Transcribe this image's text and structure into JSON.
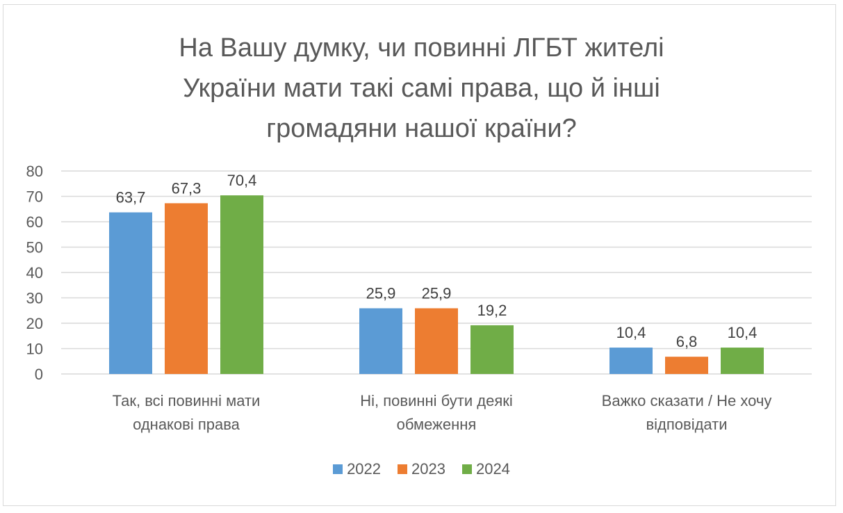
{
  "chart_data": {
    "type": "bar",
    "title_lines": [
      "На Вашу думку, чи повинні ЛГБТ жителі",
      "України мати такі самі права, що й інші",
      "громадяни нашої країни?"
    ],
    "categories": [
      [
        "Так, всі повинні мати",
        "однакові права"
      ],
      [
        "Ні, повинні бути деякі",
        "обмеження"
      ],
      [
        "Важко сказати / Не хочу",
        "відповідати"
      ]
    ],
    "series": [
      {
        "name": "2022",
        "color": "#5B9BD5",
        "values": [
          63.7,
          25.9,
          10.4
        ],
        "labels": [
          "63,7",
          "25,9",
          "10,4"
        ]
      },
      {
        "name": "2023",
        "color": "#ED7D31",
        "values": [
          67.3,
          25.9,
          6.8
        ],
        "labels": [
          "67,3",
          "25,9",
          "6,8"
        ]
      },
      {
        "name": "2024",
        "color": "#70AD47",
        "values": [
          70.4,
          19.2,
          10.4
        ],
        "labels": [
          "70,4",
          "19,2",
          "10,4"
        ]
      }
    ],
    "ylim": [
      0,
      80
    ],
    "yticks": [
      0,
      10,
      20,
      30,
      40,
      50,
      60,
      70,
      80
    ],
    "grid": true,
    "legend": "bottom",
    "xlabel": "",
    "ylabel": ""
  }
}
